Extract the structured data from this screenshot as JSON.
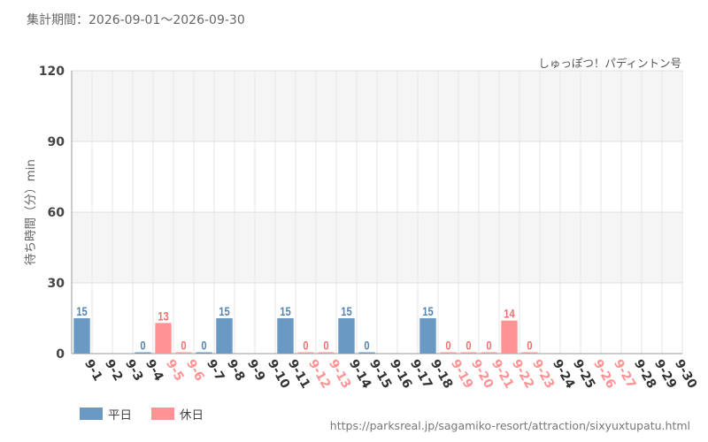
{
  "header": {
    "period": "集計期間：2026-09-01～2026-09-30",
    "attraction": "しゅっぽつ！パディントン号"
  },
  "footer": {
    "url": "https://parksreal.jp/sagamiko-resort/attraction/sixyuxtupatu.html"
  },
  "colors": {
    "weekday": "#6a9ac4",
    "holiday": "#ff9393",
    "weekday_label": "#5585b0",
    "holiday_label": "#f07070",
    "tick_weekday": "#333333"
  },
  "chart_data": {
    "type": "bar",
    "ylabel": "待ち時間（分）min",
    "ylim": [
      0,
      120
    ],
    "yticks": [
      0,
      30,
      60,
      90,
      120
    ],
    "grid": true,
    "legend_position": "bottom-left",
    "legend": [
      {
        "key": "weekday",
        "label": "平日"
      },
      {
        "key": "holiday",
        "label": "休日"
      }
    ],
    "categories": [
      "9-1",
      "9-2",
      "9-3",
      "9-4",
      "9-5",
      "9-6",
      "9-7",
      "9-8",
      "9-9",
      "9-10",
      "9-11",
      "9-12",
      "9-13",
      "9-14",
      "9-15",
      "9-16",
      "9-17",
      "9-18",
      "9-19",
      "9-20",
      "9-21",
      "9-22",
      "9-23",
      "9-24",
      "9-25",
      "9-26",
      "9-27",
      "9-28",
      "9-29",
      "9-30"
    ],
    "day_type": [
      "weekday",
      "weekday",
      "weekday",
      "weekday",
      "holiday",
      "holiday",
      "weekday",
      "weekday",
      "weekday",
      "weekday",
      "weekday",
      "holiday",
      "holiday",
      "weekday",
      "weekday",
      "weekday",
      "weekday",
      "weekday",
      "holiday",
      "holiday",
      "holiday",
      "holiday",
      "holiday",
      "weekday",
      "weekday",
      "holiday",
      "holiday",
      "weekday",
      "weekday",
      "weekday"
    ],
    "values": [
      15,
      null,
      null,
      0,
      13,
      0,
      0,
      15,
      null,
      null,
      15,
      0,
      0,
      15,
      0,
      null,
      null,
      15,
      0,
      0,
      0,
      14,
      0,
      null,
      null,
      null,
      null,
      null,
      null,
      null
    ]
  }
}
